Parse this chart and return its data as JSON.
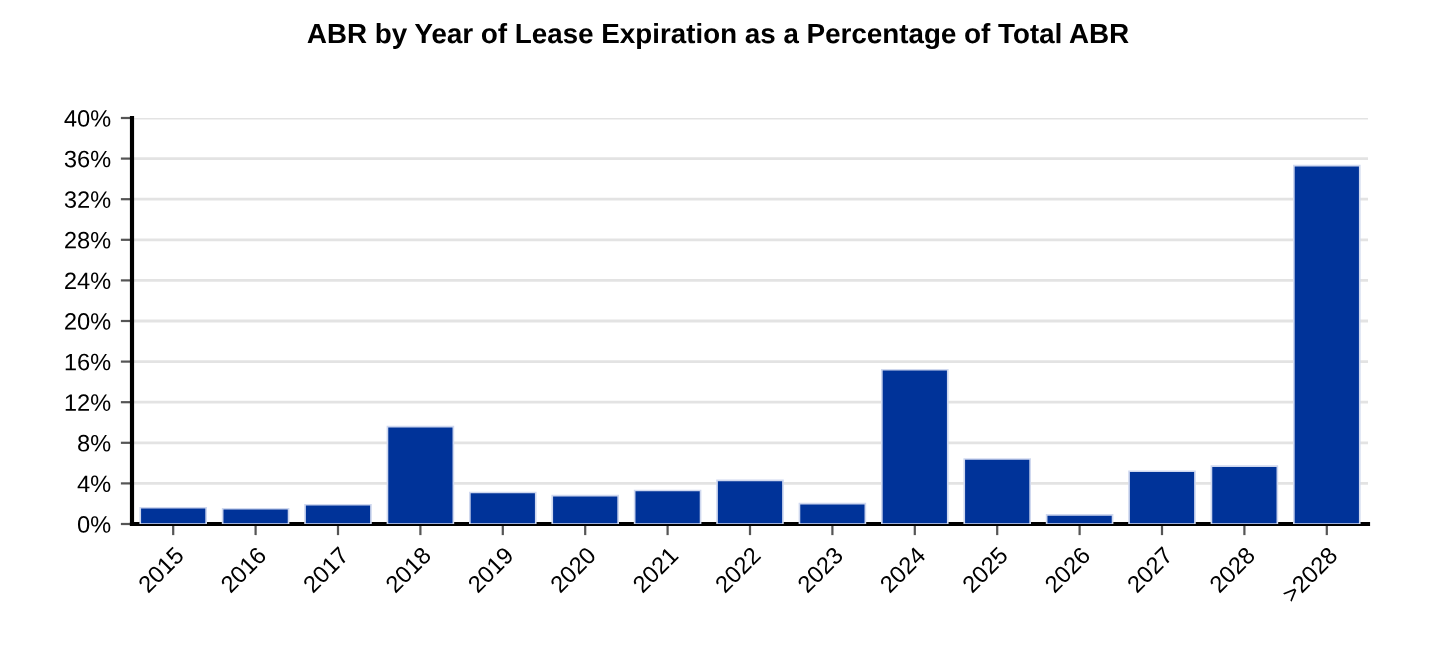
{
  "chart_data": {
    "type": "bar",
    "title": "ABR by Year of Lease Expiration as a Percentage of Total ABR",
    "categories": [
      "2015",
      "2016",
      "2017",
      "2018",
      "2019",
      "2020",
      "2021",
      "2022",
      "2023",
      "2024",
      "2025",
      "2026",
      "2027",
      "2028",
      ">2028"
    ],
    "values": [
      1.6,
      1.5,
      1.9,
      9.6,
      3.1,
      2.8,
      3.3,
      4.3,
      2.0,
      15.2,
      6.4,
      0.9,
      5.2,
      5.7,
      35.3
    ],
    "color": "#003399",
    "ylim": [
      0,
      40
    ],
    "yticks": [
      {
        "value": 0,
        "label": "0%"
      },
      {
        "value": 4,
        "label": "4%"
      },
      {
        "value": 8,
        "label": "8%"
      },
      {
        "value": 12,
        "label": "12%"
      },
      {
        "value": 16,
        "label": "16%"
      },
      {
        "value": 20,
        "label": "20%"
      },
      {
        "value": 24,
        "label": "24%"
      },
      {
        "value": 28,
        "label": "28%"
      },
      {
        "value": 32,
        "label": "32%"
      },
      {
        "value": 36,
        "label": "36%"
      },
      {
        "value": 40,
        "label": "40%"
      }
    ],
    "grid": "y"
  }
}
